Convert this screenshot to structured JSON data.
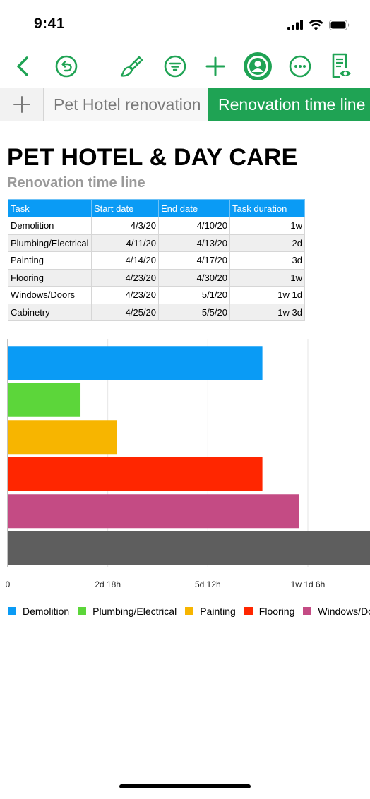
{
  "status_bar": {
    "time": "9:41"
  },
  "toolbar": {
    "icons": [
      "back-chevron-icon",
      "undo-icon",
      "paintbrush-icon",
      "filter-icon",
      "plus-icon",
      "collaborate-icon",
      "more-icon",
      "reading-view-icon"
    ],
    "accent": "#1fa354"
  },
  "tabs": [
    {
      "label": "Pet Hotel renovation",
      "active": false
    },
    {
      "label": "Renovation time line",
      "active": true
    }
  ],
  "sheet": {
    "title": "PET HOTEL & DAY CARE",
    "subtitle": "Renovation time line"
  },
  "table": {
    "headers": [
      "Task",
      "Start date",
      "End date",
      "Task duration"
    ],
    "rows": [
      [
        "Demolition",
        "4/3/20",
        "4/10/20",
        "1w"
      ],
      [
        "Plumbing/Electrical",
        "4/11/20",
        "4/13/20",
        "2d"
      ],
      [
        "Painting",
        "4/14/20",
        "4/17/20",
        "3d"
      ],
      [
        "Flooring",
        "4/23/20",
        "4/30/20",
        "1w"
      ],
      [
        "Windows/Doors",
        "4/23/20",
        "5/1/20",
        "1w 1d"
      ],
      [
        "Cabinetry",
        "4/25/20",
        "5/5/20",
        "1w 3d"
      ]
    ]
  },
  "chart_data": {
    "type": "bar",
    "orientation": "horizontal",
    "categories": [
      "Demolition",
      "Plumbing/Electrical",
      "Painting",
      "Flooring",
      "Windows/Doors",
      "Cabinetry"
    ],
    "values": [
      7,
      2,
      3,
      7,
      8,
      10
    ],
    "value_unit": "days",
    "colors": [
      "#0a9bf5",
      "#5cd63a",
      "#f7b500",
      "#ff2600",
      "#c44b84",
      "#5e5e5e"
    ],
    "x_ticks": [
      "0",
      "2d 18h",
      "5d 12h",
      "1w 1d 6h"
    ],
    "x_tick_values": [
      0,
      2.75,
      5.5,
      8.25
    ],
    "xlim": [
      0,
      9.9
    ],
    "grid": true,
    "legend": "bottom",
    "legend_entries": [
      "Demolition",
      "Plumbing/Electrical",
      "Painting",
      "Flooring",
      "Windows/Doors"
    ]
  }
}
